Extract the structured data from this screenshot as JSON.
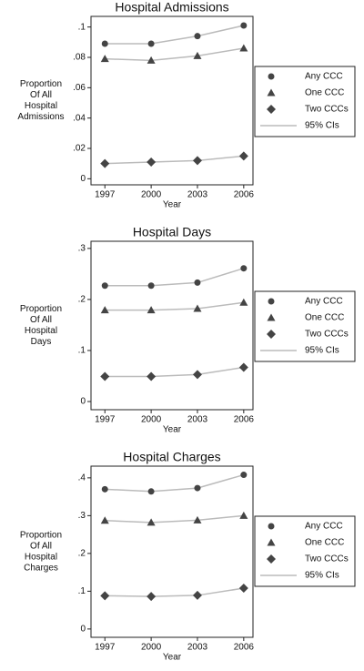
{
  "chart_data": [
    {
      "type": "line",
      "title": "Hospital Admissions",
      "xlabel": "Year",
      "ylabel": [
        "Proportion",
        "Of All",
        "Hospital",
        "Admissions"
      ],
      "x": [
        1997,
        2000,
        2003,
        2006
      ],
      "xlim": [
        1996.1,
        2006.6
      ],
      "xticks": [
        1997,
        2000,
        2003,
        2006
      ],
      "ylim": [
        -0.004,
        0.107
      ],
      "yticks": [
        0,
        {
          "value": 0.02,
          "label": ".02"
        },
        {
          "value": 0.04,
          "label": ".04"
        },
        {
          "value": 0.06,
          "label": ".06"
        },
        {
          "value": 0.08,
          "label": ".08"
        },
        {
          "value": 0.1,
          "label": ".1"
        }
      ],
      "series": [
        {
          "name": "Any CCC",
          "marker": "circle",
          "color": "#444444",
          "values": [
            0.089,
            0.089,
            0.094,
            0.101
          ]
        },
        {
          "name": "One CCC",
          "marker": "triangle",
          "color": "#444444",
          "values": [
            0.079,
            0.078,
            0.081,
            0.086
          ]
        },
        {
          "name": "Two CCCs",
          "marker": "diamond",
          "color": "#444444",
          "values": [
            0.01,
            0.011,
            0.012,
            0.015
          ]
        }
      ],
      "ci_label": "95% CIs",
      "ci_color": "#bbbbbb"
    },
    {
      "type": "line",
      "title": "Hospital Days",
      "xlabel": "Year",
      "ylabel": [
        "Proportion",
        "Of All",
        "Hospital",
        "Days"
      ],
      "x": [
        1997,
        2000,
        2003,
        2006
      ],
      "xlim": [
        1996.1,
        2006.6
      ],
      "xticks": [
        1997,
        2000,
        2003,
        2006
      ],
      "ylim": [
        -0.016,
        0.314
      ],
      "yticks": [
        0,
        {
          "value": 0.1,
          "label": ".1"
        },
        {
          "value": 0.2,
          "label": ".2"
        },
        {
          "value": 0.3,
          "label": ".3"
        }
      ],
      "series": [
        {
          "name": "Any CCC",
          "marker": "circle",
          "color": "#444444",
          "values": [
            0.227,
            0.227,
            0.233,
            0.261
          ]
        },
        {
          "name": "One CCC",
          "marker": "triangle",
          "color": "#444444",
          "values": [
            0.179,
            0.179,
            0.182,
            0.194
          ]
        },
        {
          "name": "Two CCCs",
          "marker": "diamond",
          "color": "#444444",
          "values": [
            0.049,
            0.049,
            0.053,
            0.067
          ]
        }
      ],
      "ci_label": "95% CIs",
      "ci_color": "#bbbbbb"
    },
    {
      "type": "line",
      "title": "Hospital Charges",
      "xlabel": "Year",
      "ylabel": [
        "Proportion",
        "Of All",
        "Hospital",
        "Charges"
      ],
      "x": [
        1997,
        2000,
        2003,
        2006
      ],
      "xlim": [
        1996.1,
        2006.6
      ],
      "xticks": [
        1997,
        2000,
        2003,
        2006
      ],
      "ylim": [
        -0.022,
        0.431
      ],
      "yticks": [
        0,
        {
          "value": 0.1,
          "label": ".1"
        },
        {
          "value": 0.2,
          "label": ".2"
        },
        {
          "value": 0.3,
          "label": ".3"
        },
        {
          "value": 0.4,
          "label": ".4"
        }
      ],
      "series": [
        {
          "name": "Any CCC",
          "marker": "circle",
          "color": "#444444",
          "values": [
            0.37,
            0.364,
            0.373,
            0.408
          ]
        },
        {
          "name": "One CCC",
          "marker": "triangle",
          "color": "#444444",
          "values": [
            0.287,
            0.282,
            0.288,
            0.3
          ]
        },
        {
          "name": "Two CCCs",
          "marker": "diamond",
          "color": "#444444",
          "values": [
            0.088,
            0.086,
            0.089,
            0.108
          ]
        }
      ],
      "ci_label": "95% CIs",
      "ci_color": "#bbbbbb"
    }
  ]
}
